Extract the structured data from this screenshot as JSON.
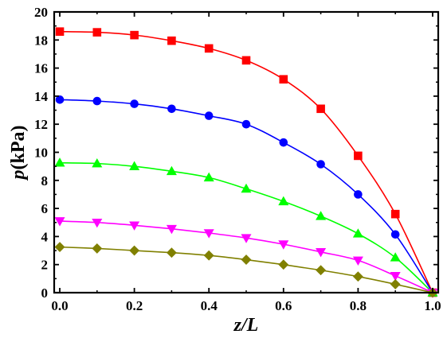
{
  "chart_data": {
    "type": "line",
    "title": "",
    "xlabel": {
      "var": "z/L",
      "unit": ""
    },
    "ylabel": {
      "var": "p",
      "unit": "(kPa)"
    },
    "xlim": [
      -0.015,
      1.015
    ],
    "ylim": [
      0,
      20
    ],
    "x_ticks": [
      0.0,
      0.2,
      0.4,
      0.6,
      0.8,
      1.0
    ],
    "x_tick_labels": [
      "0.0",
      "0.2",
      "0.4",
      "0.6",
      "0.8",
      "1.0"
    ],
    "y_ticks": [
      0,
      2,
      4,
      6,
      8,
      10,
      12,
      14,
      16,
      18,
      20
    ],
    "y_tick_labels": [
      "0",
      "2",
      "4",
      "6",
      "8",
      "10",
      "12",
      "14",
      "16",
      "18",
      "20"
    ],
    "grid": false,
    "legend": "none",
    "x": [
      0.0,
      0.1,
      0.2,
      0.3,
      0.4,
      0.5,
      0.6,
      0.7,
      0.8,
      0.9,
      1.0
    ],
    "series": [
      {
        "marker": "square",
        "color": "#ff0000",
        "values": [
          18.6,
          18.55,
          18.35,
          17.95,
          17.4,
          16.55,
          15.2,
          13.1,
          9.75,
          5.6,
          0.0
        ]
      },
      {
        "marker": "circle",
        "color": "#0000ff",
        "values": [
          13.75,
          13.65,
          13.45,
          13.1,
          12.6,
          12.0,
          10.7,
          9.15,
          7.0,
          4.15,
          0.0
        ]
      },
      {
        "marker": "triangle-up",
        "color": "#00ff00",
        "values": [
          9.25,
          9.2,
          9.0,
          8.65,
          8.2,
          7.4,
          6.5,
          5.45,
          4.2,
          2.5,
          0.0
        ]
      },
      {
        "marker": "triangle-down",
        "color": "#ff00ff",
        "values": [
          5.1,
          5.0,
          4.8,
          4.55,
          4.25,
          3.9,
          3.45,
          2.9,
          2.3,
          1.2,
          0.0
        ]
      },
      {
        "marker": "diamond",
        "color": "#808000",
        "values": [
          3.25,
          3.15,
          3.0,
          2.85,
          2.65,
          2.35,
          2.0,
          1.6,
          1.15,
          0.6,
          0.0
        ]
      }
    ]
  }
}
